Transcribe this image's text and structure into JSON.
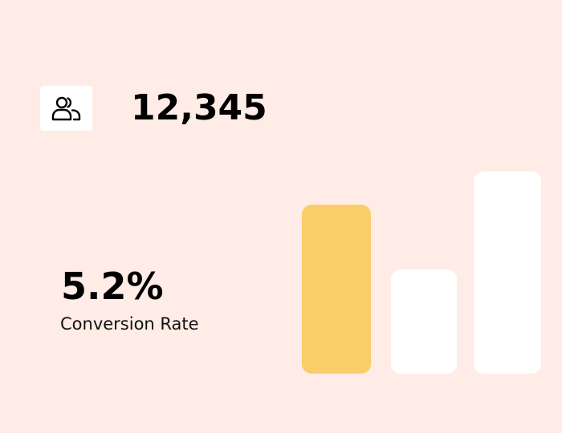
{
  "stat": {
    "icon": "users-icon",
    "value": "12,345"
  },
  "conversion": {
    "value": "5.2%",
    "label": "Conversion Rate"
  },
  "chart_data": {
    "type": "bar",
    "title": "",
    "xlabel": "",
    "ylabel": "",
    "grid": false,
    "legend": "none",
    "axes_visible": false,
    "ylim": [
      0,
      1
    ],
    "categories": [
      "",
      "",
      ""
    ],
    "values": [
      0.81,
      0.5,
      0.97
    ],
    "colors": [
      "#F9CD6A",
      "#FFFFFF",
      "#FFFFFF"
    ]
  }
}
